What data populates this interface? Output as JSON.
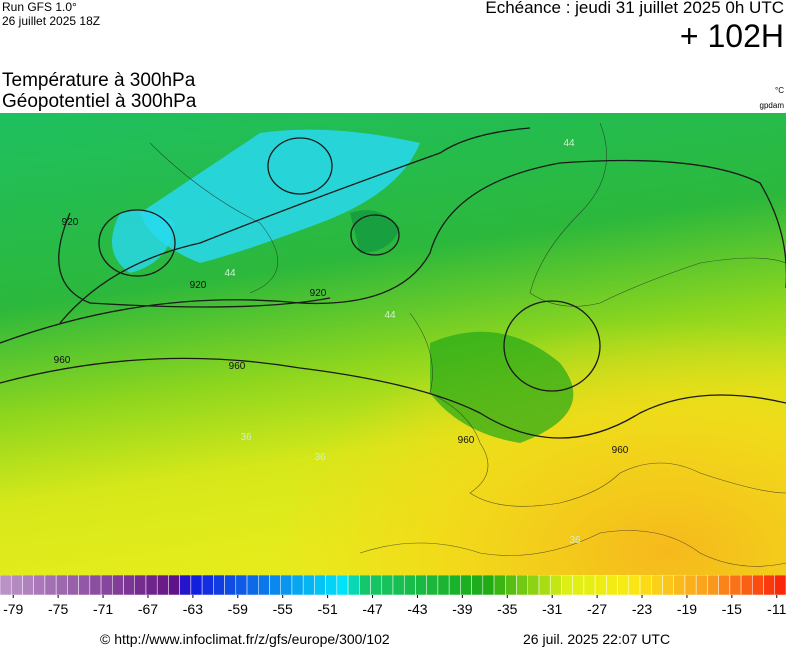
{
  "header": {
    "model": "Run GFS 1.0°",
    "run": "26 juillet 2025 18Z",
    "valid": "Echéance : jeudi 31 juillet 2025 0h UTC",
    "lead": "+ 102H"
  },
  "titles": {
    "line1": "Température à 300hPa",
    "line2": "Géopotentiel à 300hPa",
    "unit_temp": "°C",
    "unit_geo": "gpdam"
  },
  "map": {
    "contour_labels": [
      920,
      920,
      920,
      960,
      960,
      960,
      960,
      44,
      44,
      44,
      36,
      36,
      36
    ]
  },
  "colorbar": {
    "lim": [
      -80,
      -10
    ],
    "ticks": [
      -79,
      -75,
      -71,
      -67,
      -63,
      -59,
      -55,
      -51,
      -47,
      -43,
      -39,
      -35,
      -31,
      -27,
      -23,
      -19,
      -15,
      -11
    ]
  },
  "footer": {
    "url": "© http://www.infoclimat.fr/z/gfs/europe/300/102",
    "generated": "26 juil. 2025 22:07 UTC"
  }
}
